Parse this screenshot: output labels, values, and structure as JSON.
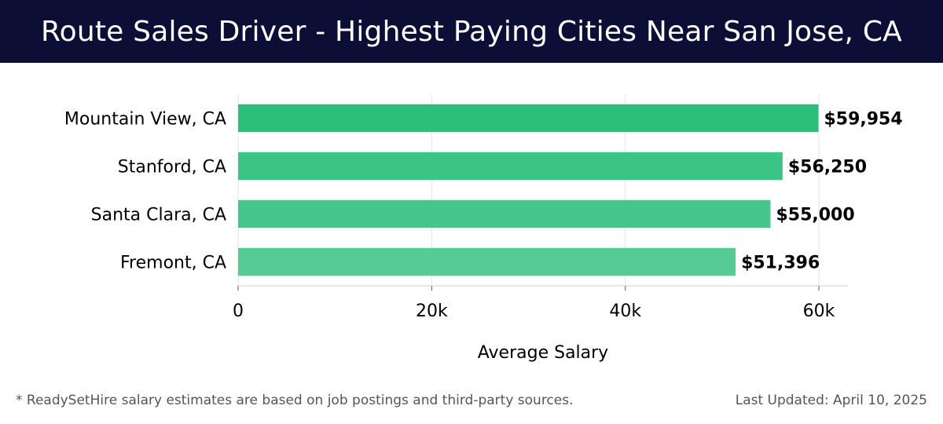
{
  "header": {
    "title": "Route Sales Driver - Highest Paying Cities Near San Jose, CA"
  },
  "chart_data": {
    "type": "bar",
    "orientation": "horizontal",
    "categories": [
      "Mountain View, CA",
      "Stanford, CA",
      "Santa Clara, CA",
      "Fremont, CA"
    ],
    "values": [
      59954,
      56250,
      55000,
      51396
    ],
    "value_labels": [
      "$59,954",
      "$56,250",
      "$55,000",
      "$51,396"
    ],
    "xlabel": "Average Salary",
    "ylabel": "",
    "xlim": [
      0,
      63000
    ],
    "x_ticks": [
      0,
      20000,
      40000,
      60000
    ],
    "x_tick_labels": [
      "0",
      "20k",
      "40k",
      "60k"
    ],
    "grid": true,
    "bar_colors": [
      "#2bbf79",
      "#3cc386",
      "#45c68c",
      "#57cb96"
    ]
  },
  "footer": {
    "note": "* ReadySetHire salary estimates are based on job postings and third-party sources.",
    "updated": "Last Updated: April 10, 2025"
  }
}
